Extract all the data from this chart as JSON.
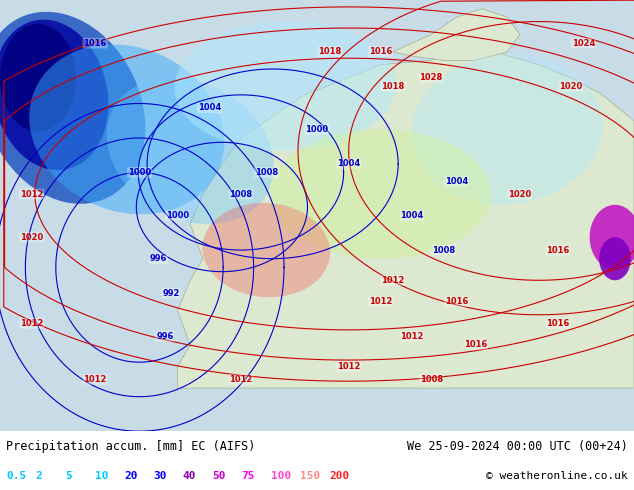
{
  "title_left": "Precipitation accum. [mm] EC (AIFS)",
  "title_right": "We 25-09-2024 00:00 UTC (00+24)",
  "copyright": "© weatheronline.co.uk",
  "legend_values": [
    "0.5",
    "2",
    "5",
    "10",
    "20",
    "30",
    "40",
    "50",
    "75",
    "100",
    "150",
    "200"
  ],
  "legend_colors": [
    "#e0f8ff",
    "#b0e8ff",
    "#70c8ff",
    "#38a8f8",
    "#0070e8",
    "#0038b8",
    "#8000c0",
    "#c000c0",
    "#ff00ff",
    "#ff40c0",
    "#ff8080",
    "#ff0000"
  ],
  "bg_color": "#f0f4f8",
  "map_bg": "#d8e8f0",
  "land_color": "#e8f0d8",
  "text_color_left": "#000000",
  "text_color_right": "#000000",
  "legend_text_colors": [
    "#00c8ff",
    "#00c8ff",
    "#00c8ff",
    "#00c8ff",
    "#0000ff",
    "#0000ff",
    "#8800aa",
    "#cc00cc",
    "#ff00ff",
    "#ff44cc",
    "#ff8888",
    "#ff2222"
  ],
  "figsize": [
    6.34,
    4.9
  ],
  "dpi": 100
}
